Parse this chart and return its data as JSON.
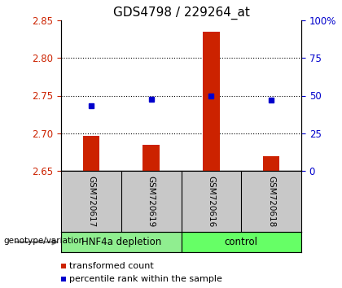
{
  "title": "GDS4798 / 229264_at",
  "samples": [
    "GSM720617",
    "GSM720619",
    "GSM720616",
    "GSM720618"
  ],
  "red_values": [
    2.697,
    2.685,
    2.835,
    2.67
  ],
  "blue_values": [
    2.736,
    2.745,
    2.749,
    2.744
  ],
  "ylim_left": [
    2.65,
    2.85
  ],
  "ylim_right": [
    0,
    100
  ],
  "yticks_left": [
    2.65,
    2.7,
    2.75,
    2.8,
    2.85
  ],
  "yticks_right": [
    0,
    25,
    50,
    75,
    100
  ],
  "ytick_labels_right": [
    "0",
    "25",
    "50",
    "75",
    "100%"
  ],
  "groups": [
    {
      "label": "HNF4a depletion",
      "indices": [
        0,
        1
      ],
      "color": "#90EE90"
    },
    {
      "label": "control",
      "indices": [
        2,
        3
      ],
      "color": "#66FF66"
    }
  ],
  "group_label": "genotype/variation",
  "legend_red": "transformed count",
  "legend_blue": "percentile rank within the sample",
  "bar_color": "#CC2200",
  "dot_color": "#0000CC",
  "bg_plot": "#FFFFFF",
  "bg_label_area": "#C8C8C8",
  "title_fontsize": 11,
  "tick_fontsize": 8.5,
  "sample_fontsize": 7.5,
  "group_fontsize": 8.5,
  "legend_fontsize": 8
}
